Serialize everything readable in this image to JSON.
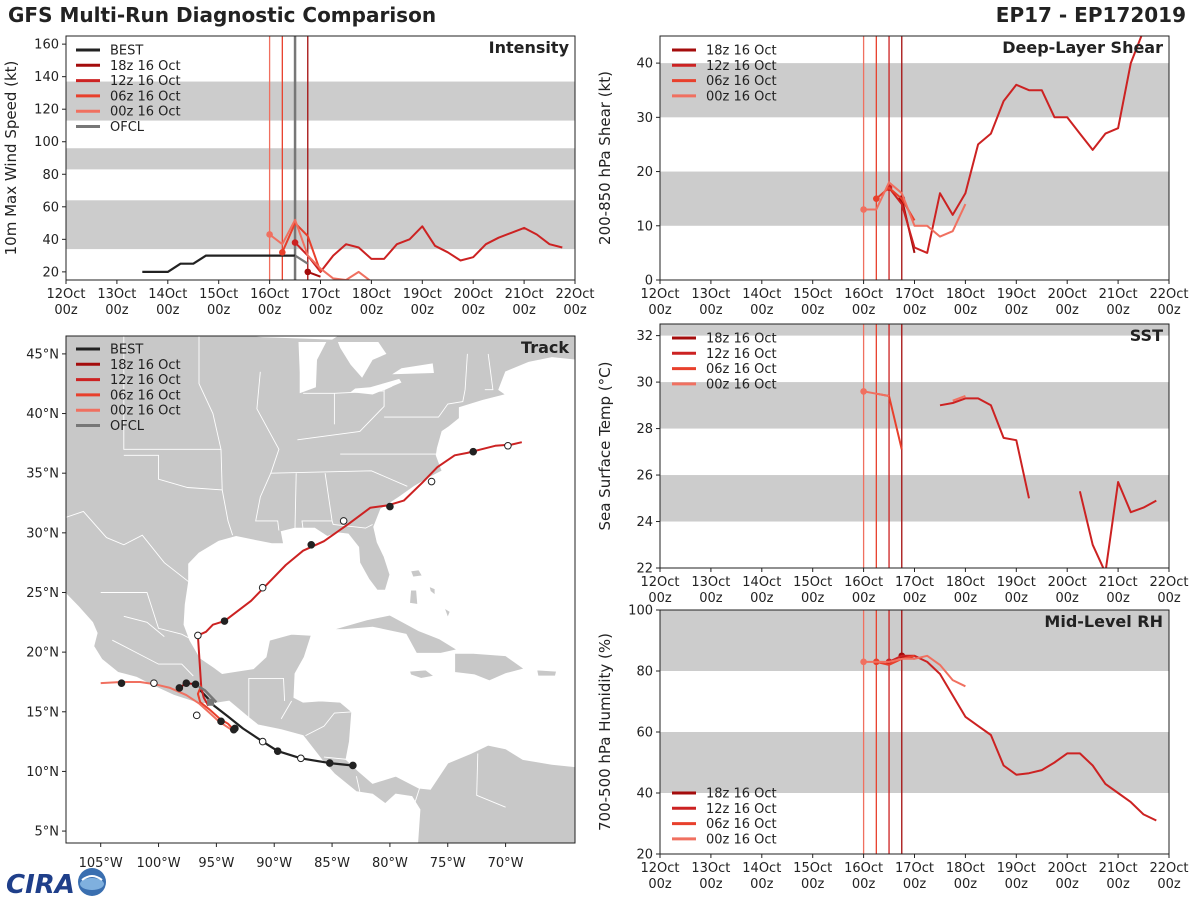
{
  "header": {
    "title": "GFS Multi-Run Diagnostic Comparison",
    "storm": "EP17 - EP172019"
  },
  "logo": {
    "text": "CIRA"
  },
  "colors": {
    "best": "#222222",
    "run_18z": "#a40c0c",
    "run_12z": "#cc2222",
    "run_06z": "#e8402c",
    "run_00z": "#f07060",
    "ofcl": "#777777",
    "shade": "#cccccc",
    "land": "#c8c8c8"
  },
  "time_axis": {
    "ticks": [
      0,
      1,
      2,
      3,
      4,
      5,
      6,
      7,
      8,
      9,
      10
    ],
    "labels_top": [
      "12Oct",
      "13Oct",
      "14Oct",
      "15Oct",
      "16Oct",
      "17Oct",
      "18Oct",
      "19Oct",
      "20Oct",
      "21Oct",
      "22Oct"
    ],
    "labels_bottom": [
      "00z",
      "00z",
      "00z",
      "00z",
      "00z",
      "00z",
      "00z",
      "00z",
      "00z",
      "00z",
      "00z"
    ]
  },
  "init_times": [
    4.0,
    4.25,
    4.5,
    4.75
  ],
  "chart_data": [
    {
      "id": "intensity",
      "type": "line",
      "title": "Intensity",
      "ylabel": "10m Max Wind Speed (kt)",
      "xlim": [
        0,
        10
      ],
      "ylim": [
        15,
        165
      ],
      "yticks": [
        20,
        40,
        60,
        80,
        100,
        120,
        140,
        160
      ],
      "bands": [
        [
          34,
          64
        ],
        [
          83,
          96
        ],
        [
          113,
          137
        ]
      ],
      "ofcl_marker": 4.5,
      "legend": [
        "BEST",
        "18z 16 Oct",
        "12z 16 Oct",
        "06z 16 Oct",
        "00z 16 Oct",
        "OFCL"
      ],
      "series": [
        {
          "name": "BEST",
          "color": "best",
          "width": 2.2,
          "x": [
            1.5,
            2,
            2.25,
            2.5,
            2.75,
            3,
            3.25,
            3.5,
            3.75,
            4,
            4.25,
            4.5
          ],
          "y": [
            20,
            20,
            25,
            25,
            30,
            30,
            30,
            30,
            30,
            30,
            30,
            30
          ]
        },
        {
          "name": "18z 16 Oct",
          "color": "run_18z",
          "width": 2,
          "x": [
            4.75,
            5
          ],
          "y": [
            20,
            17
          ],
          "marker": true
        },
        {
          "name": "12z 16 Oct",
          "color": "run_12z",
          "width": 2,
          "x": [
            4.5,
            4.75,
            5,
            5.25,
            5.5,
            5.75,
            6,
            6.25,
            6.5,
            6.75,
            7,
            7.25,
            7.5,
            7.75,
            8,
            8.25,
            8.5,
            8.75,
            9,
            9.25,
            9.5,
            9.75
          ],
          "y": [
            38,
            30,
            20,
            30,
            37,
            35,
            28,
            28,
            37,
            40,
            48,
            36,
            32,
            27,
            29,
            37,
            41,
            44,
            47,
            43,
            37,
            35
          ],
          "marker": true
        },
        {
          "name": "06z 16 Oct",
          "color": "run_06z",
          "width": 2,
          "x": [
            4.25,
            4.5,
            4.75,
            5
          ],
          "y": [
            32,
            50,
            42,
            20
          ],
          "marker": true
        },
        {
          "name": "00z 16 Oct",
          "color": "run_00z",
          "width": 2,
          "x": [
            4,
            4.25,
            4.5,
            4.75,
            5,
            5.25,
            5.5,
            5.75,
            6
          ],
          "y": [
            43,
            37,
            52,
            30,
            22,
            16,
            15,
            20,
            14
          ],
          "marker": true
        },
        {
          "name": "OFCL",
          "color": "ofcl",
          "width": 2.2,
          "x": [
            4.5,
            4.75
          ],
          "y": [
            30,
            25
          ]
        }
      ]
    },
    {
      "id": "shear",
      "type": "line",
      "title": "Deep-Layer Shear",
      "ylabel": "200-850 hPa Shear (kt)",
      "xlim": [
        0,
        10
      ],
      "ylim": [
        0,
        45
      ],
      "yticks": [
        0,
        10,
        20,
        30,
        40
      ],
      "bands": [
        [
          10,
          20
        ],
        [
          30,
          40
        ]
      ],
      "legend": [
        "18z 16 Oct",
        "12z 16 Oct",
        "06z 16 Oct",
        "00z 16 Oct"
      ],
      "series": [
        {
          "name": "18z 16 Oct",
          "color": "run_18z",
          "width": 2,
          "x": [
            4.75,
            5
          ],
          "y": [
            15,
            5
          ],
          "marker": true
        },
        {
          "name": "12z 16 Oct",
          "color": "run_12z",
          "width": 2,
          "x": [
            4.5,
            4.75,
            5,
            5.25,
            5.5,
            5.75,
            6,
            6.25,
            6.5,
            6.75,
            7,
            7.25,
            7.5,
            7.75,
            8,
            8.25,
            8.5,
            8.75,
            9,
            9.25,
            9.5
          ],
          "y": [
            17,
            14,
            6,
            5,
            16,
            12,
            16,
            25,
            27,
            33,
            36,
            35,
            35,
            30,
            30,
            27,
            24,
            27,
            28,
            40,
            46
          ],
          "marker": true
        },
        {
          "name": "06z 16 Oct",
          "color": "run_06z",
          "width": 2,
          "x": [
            4.25,
            4.5,
            4.75,
            5
          ],
          "y": [
            15,
            17,
            15,
            11
          ],
          "marker": true
        },
        {
          "name": "00z 16 Oct",
          "color": "run_00z",
          "width": 2,
          "x": [
            4,
            4.25,
            4.5,
            4.75,
            5,
            5.25,
            5.5,
            5.75,
            6
          ],
          "y": [
            13,
            13,
            18,
            16,
            10,
            10,
            8,
            9,
            14
          ],
          "marker": true
        }
      ]
    },
    {
      "id": "sst",
      "type": "line",
      "title": "SST",
      "ylabel": "Sea Surface Temp (°C)",
      "xlim": [
        0,
        10
      ],
      "ylim": [
        22,
        32.5
      ],
      "yticks": [
        22,
        24,
        26,
        28,
        30,
        32
      ],
      "bands": [
        [
          24,
          26
        ],
        [
          28,
          30
        ],
        [
          32,
          32.5
        ]
      ],
      "legend": [
        "18z 16 Oct",
        "12z 16 Oct",
        "06z 16 Oct",
        "00z 16 Oct"
      ],
      "series": [
        {
          "name": "12z 16 Oct",
          "color": "run_12z",
          "width": 2,
          "x": [
            5.5,
            5.75,
            6,
            6.25,
            6.5,
            6.75,
            7,
            7.25
          ],
          "y": [
            29.0,
            29.1,
            29.3,
            29.3,
            29.0,
            27.6,
            27.5,
            25.0
          ]
        },
        {
          "name": "12z 16 Oct b",
          "color": "run_12z",
          "width": 2,
          "x": [
            8.25,
            8.5,
            8.75,
            9,
            9.25,
            9.5,
            9.75
          ],
          "y": [
            25.3,
            23.0,
            21.8,
            25.7,
            24.4,
            24.6,
            24.9
          ]
        },
        {
          "name": "06z 16 Oct",
          "color": "run_06z",
          "width": 2,
          "x": [
            4.25,
            4.5,
            4.75
          ],
          "y": [
            29.5,
            29.4,
            27.1
          ]
        },
        {
          "name": "00z 16 Oct",
          "color": "run_00z",
          "width": 2,
          "x": [
            4,
            4.25,
            4.5
          ],
          "y": [
            29.6,
            29.5,
            29.4
          ],
          "marker": true
        },
        {
          "name": "00z 16 Oct b",
          "color": "run_00z",
          "width": 2,
          "x": [
            5.75,
            6
          ],
          "y": [
            29.2,
            29.4
          ]
        }
      ]
    },
    {
      "id": "rh",
      "type": "line",
      "title": "Mid-Level RH",
      "ylabel": "700-500 hPa Humidity (%)",
      "xlim": [
        0,
        10
      ],
      "ylim": [
        20,
        100
      ],
      "yticks": [
        20,
        40,
        60,
        80,
        100
      ],
      "bands": [
        [
          40,
          60
        ],
        [
          80,
          100
        ]
      ],
      "legend": [
        "18z 16 Oct",
        "12z 16 Oct",
        "06z 16 Oct",
        "00z 16 Oct"
      ],
      "series": [
        {
          "name": "18z 16 Oct",
          "color": "run_18z",
          "width": 2,
          "x": [
            4.75,
            5
          ],
          "y": [
            85,
            84
          ],
          "marker": true
        },
        {
          "name": "12z 16 Oct",
          "color": "run_12z",
          "width": 2,
          "x": [
            4.5,
            4.75,
            5,
            5.25,
            5.5,
            5.75,
            6,
            6.25,
            6.5,
            6.75,
            7,
            7.25,
            7.5,
            7.75,
            8,
            8.25,
            8.5,
            8.75,
            9,
            9.25,
            9.5,
            9.75
          ],
          "y": [
            83,
            85,
            85,
            83,
            79,
            72,
            65,
            62,
            59,
            49,
            46,
            46.5,
            47.5,
            50,
            53,
            53,
            49,
            43,
            40,
            37,
            33,
            31
          ],
          "marker": true
        },
        {
          "name": "06z 16 Oct",
          "color": "run_06z",
          "width": 2,
          "x": [
            4.25,
            4.5,
            4.75,
            5
          ],
          "y": [
            83,
            82,
            84,
            85
          ],
          "marker": true
        },
        {
          "name": "00z 16 Oct",
          "color": "run_00z",
          "width": 2,
          "x": [
            4,
            4.25,
            4.5,
            4.75,
            5,
            5.25,
            5.5,
            5.75,
            6
          ],
          "y": [
            83,
            83,
            83,
            84,
            84,
            85,
            82,
            77,
            75
          ],
          "marker": true
        }
      ]
    },
    {
      "id": "track",
      "type": "scatter",
      "title": "Track",
      "xlim": [
        -108,
        -64
      ],
      "ylim": [
        4,
        46.5
      ],
      "xticks": [
        -105,
        -100,
        -95,
        -90,
        -85,
        -80,
        -75,
        -70
      ],
      "xtick_labels": [
        "105°W",
        "100°W",
        "95°W",
        "90°W",
        "85°W",
        "80°W",
        "75°W",
        "70°W"
      ],
      "yticks": [
        5,
        10,
        15,
        20,
        25,
        30,
        35,
        40,
        45
      ],
      "ytick_labels": [
        "5°N",
        "10°N",
        "15°N",
        "20°N",
        "25°N",
        "30°N",
        "35°N",
        "40°N",
        "45°N"
      ],
      "legend": [
        "BEST",
        "18z 16 Oct",
        "12z 16 Oct",
        "06z 16 Oct",
        "00z 16 Oct",
        "OFCL"
      ],
      "series": [
        {
          "name": "BEST",
          "color": "best",
          "width": 2.2,
          "lon": [
            -83.2,
            -85.2,
            -87.7,
            -89.7,
            -91.0,
            -92.7,
            -94.0,
            -95.2,
            -95.8,
            -96.4
          ],
          "lat": [
            10.5,
            10.7,
            11.1,
            11.7,
            12.5,
            13.6,
            14.6,
            15.5,
            16.2,
            16.8
          ],
          "dots": [
            [
              -83.2,
              10.5,
              1
            ],
            [
              -85.2,
              10.7,
              1
            ],
            [
              -87.7,
              11.1,
              0
            ],
            [
              -89.7,
              11.7,
              1
            ],
            [
              -91.0,
              12.5,
              0
            ],
            [
              -93.4,
              13.6,
              1
            ]
          ]
        },
        {
          "name": "18z 16 Oct",
          "color": "run_18z",
          "width": 2,
          "lon": [
            -96.8,
            -97.6,
            -98.2
          ],
          "lat": [
            17.3,
            17.4,
            17.0
          ],
          "dots": [
            [
              -96.8,
              17.3,
              1
            ],
            [
              -97.6,
              17.4,
              1
            ],
            [
              -98.2,
              17.0,
              1
            ]
          ]
        },
        {
          "name": "12z 16 Oct",
          "color": "run_12z",
          "width": 2,
          "lon": [
            -95.7,
            -96.1,
            -96.3,
            -96.4,
            -96.6,
            -95.9,
            -95.3,
            -94.3,
            -92.0,
            -90.5,
            -89.0,
            -87.5,
            -85.7,
            -83.5,
            -81.7,
            -80.2,
            -78.8,
            -77.2,
            -75.9,
            -74.4,
            -73.3,
            -72.1,
            -70.9,
            -69.5,
            -68.6
          ],
          "lat": [
            15.5,
            16.2,
            17.0,
            18.4,
            21.4,
            21.7,
            22.3,
            22.6,
            24.3,
            25.8,
            27.3,
            28.5,
            29.3,
            30.8,
            32.1,
            32.3,
            32.7,
            34.2,
            35.5,
            36.5,
            36.7,
            37.0,
            37.3,
            37.4,
            37.6
          ],
          "dots": [
            [
              -96.6,
              21.4,
              0
            ],
            [
              -94.3,
              22.6,
              1
            ],
            [
              -91.0,
              25.4,
              0
            ],
            [
              -86.8,
              29.0,
              1
            ],
            [
              -84.0,
              31.0,
              0
            ],
            [
              -80.0,
              32.2,
              1
            ],
            [
              -76.4,
              34.3,
              0
            ],
            [
              -72.8,
              36.8,
              1
            ],
            [
              -69.8,
              37.3,
              0
            ]
          ]
        },
        {
          "name": "06z 16 Oct",
          "color": "run_06z",
          "width": 2,
          "lon": [
            -96.3,
            -96.6,
            -96.4,
            -95.6,
            -94.7,
            -94.0,
            -93.5
          ],
          "lat": [
            17.2,
            16.5,
            15.8,
            15.2,
            14.4,
            14.0,
            13.5
          ],
          "dots": [
            [
              -94.6,
              14.2,
              1
            ],
            [
              -93.5,
              13.5,
              1
            ]
          ]
        },
        {
          "name": "00z 16 Oct",
          "color": "run_00z",
          "width": 2,
          "lon": [
            -105.0,
            -103.2,
            -101.6,
            -100.3,
            -99.0,
            -97.6,
            -96.5,
            -95.7,
            -94.8,
            -93.7
          ],
          "lat": [
            17.4,
            17.5,
            17.5,
            17.3,
            17.0,
            16.4,
            15.7,
            15.0,
            14.2,
            13.5
          ],
          "dots": [
            [
              -103.2,
              17.4,
              1
            ],
            [
              -100.4,
              17.4,
              0
            ],
            [
              -96.7,
              14.7,
              0
            ]
          ]
        },
        {
          "name": "OFCL",
          "color": "ofcl",
          "width": 2.5,
          "lon": [
            -96.5,
            -96.0,
            -95.5,
            -95.0
          ],
          "lat": [
            17.1,
            16.8,
            16.3,
            15.8
          ],
          "dots": [
            [
              -95.5,
              15.8,
              2
            ]
          ]
        }
      ]
    }
  ]
}
